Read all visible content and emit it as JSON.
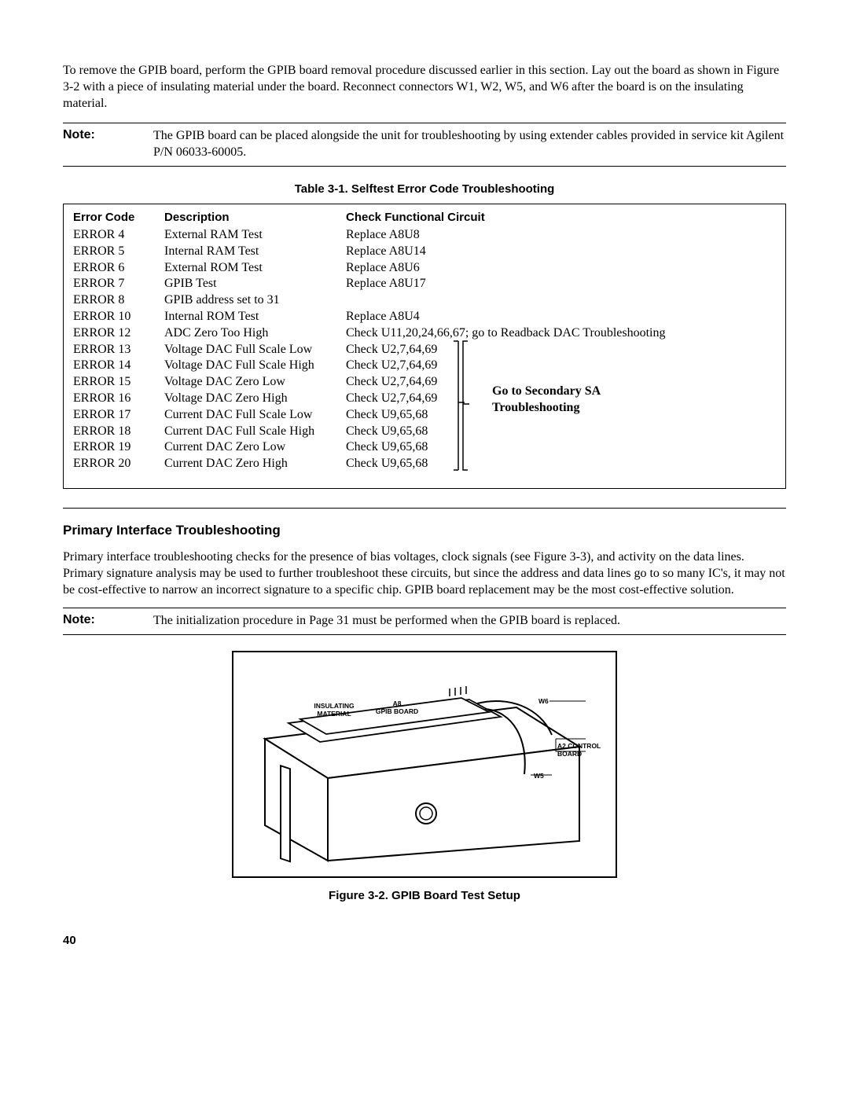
{
  "intro_para": "To remove the GPIB board, perform the GPIB board removal procedure discussed earlier in this section. Lay out the board as shown in Figure 3-2 with a piece of insulating material under the board. Reconnect connectors W1, W2, W5, and W6 after the board is on the insulating material.",
  "note1": {
    "label": "Note:",
    "text": "The GPIB board can be placed alongside the unit for troubleshooting by using extender cables provided in service kit Agilent P/N 06033-60005."
  },
  "table": {
    "caption": "Table 3-1.  Selftest Error Code Troubleshooting",
    "headers": [
      "Error Code",
      "Description",
      "Check Functional Circuit"
    ],
    "rows": [
      [
        "ERROR 4",
        "External RAM Test",
        "Replace A8U8"
      ],
      [
        "ERROR 5",
        "Internal RAM Test",
        "Replace A8U14"
      ],
      [
        "ERROR 6",
        "External ROM Test",
        "Replace A8U6"
      ],
      [
        "ERROR 7",
        "GPIB Test",
        "Replace A8U17"
      ],
      [
        "ERROR 8",
        "GPIB address set to 31",
        ""
      ],
      [
        "ERROR 10",
        "Internal ROM Test",
        "Replace A8U4"
      ],
      [
        "ERROR 12",
        "ADC Zero Too High",
        "Check U11,20,24,66,67; go to Readback DAC Troubleshooting"
      ],
      [
        "ERROR 13",
        "Voltage DAC Full Scale Low",
        "Check U2,7,64,69"
      ],
      [
        "ERROR 14",
        "Voltage DAC Full Scale High",
        "Check U2,7,64,69"
      ],
      [
        "ERROR 15",
        "Voltage DAC Zero Low",
        "Check U2,7,64,69"
      ],
      [
        "ERROR 16",
        "Voltage DAC Zero High",
        "Check U2,7,64,69"
      ],
      [
        "ERROR 17",
        "Current DAC Full Scale Low",
        "Check U9,65,68"
      ],
      [
        "ERROR 18",
        "Current DAC Full Scale High",
        "Check U9,65,68"
      ],
      [
        "ERROR 19",
        "Current DAC Zero Low",
        "Check U9,65,68"
      ],
      [
        "ERROR 20",
        "Current DAC Zero High",
        "Check U9,65,68"
      ]
    ],
    "bracket_label_line1": "Go to Secondary SA",
    "bracket_label_line2": "Troubleshooting"
  },
  "section2": {
    "heading": "Primary Interface Troubleshooting",
    "para": "Primary interface troubleshooting checks for the presence of bias voltages, clock signals (see Figure 3-3), and activity on the data lines. Primary signature analysis may be used to further troubleshoot these circuits, but since the address and data lines go to so many IC's, it may not be cost-effective to narrow an incorrect signature to a specific chip. GPIB board replacement may be the most cost-effective solution."
  },
  "note2": {
    "label": "Note:",
    "text": "The initialization procedure in Page 31 must be performed when the GPIB board is replaced."
  },
  "figure": {
    "caption": "Figure 3-2.  GPIB Board Test Setup",
    "labels": {
      "insulating": "INSULATING\nMATERIAL",
      "gpib": "A8\nGPIB BOARD",
      "w6": "W6",
      "control": "A2 CONTROL\nBOARD",
      "w5": "W5"
    }
  },
  "page_number": "40"
}
